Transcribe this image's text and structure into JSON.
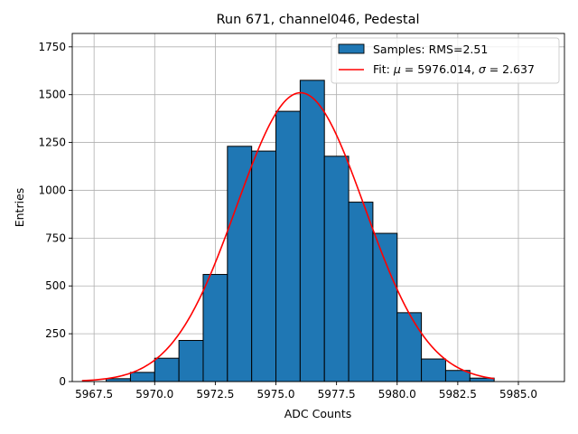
{
  "chart_data": {
    "type": "bar",
    "title": "Run 671, channel046, Pedestal",
    "xlabel": "ADC Counts",
    "ylabel": "Entries",
    "xlim": [
      5966.6,
      5986.9
    ],
    "ylim": [
      0,
      1820
    ],
    "grid": true,
    "bar_color": "#1f77b4",
    "fit_color": "#ff0000",
    "xticks": [
      5967.5,
      5970.0,
      5972.5,
      5975.0,
      5977.5,
      5980.0,
      5982.5,
      5985.0
    ],
    "xtick_labels": [
      "5967.5",
      "5970.0",
      "5972.5",
      "5975.0",
      "5977.5",
      "5980.0",
      "5982.5",
      "5985.0"
    ],
    "yticks": [
      0,
      250,
      500,
      750,
      1000,
      1250,
      1500,
      1750
    ],
    "ytick_labels": [
      "0",
      "250",
      "500",
      "750",
      "1000",
      "1250",
      "1500",
      "1750"
    ],
    "bins": [
      {
        "x0": 5967,
        "x1": 5968,
        "value": 0
      },
      {
        "x0": 5968,
        "x1": 5969,
        "value": 15
      },
      {
        "x0": 5969,
        "x1": 5970,
        "value": 48
      },
      {
        "x0": 5970,
        "x1": 5971,
        "value": 122
      },
      {
        "x0": 5971,
        "x1": 5972,
        "value": 215
      },
      {
        "x0": 5972,
        "x1": 5973,
        "value": 560
      },
      {
        "x0": 5973,
        "x1": 5974,
        "value": 1230
      },
      {
        "x0": 5974,
        "x1": 5975,
        "value": 1205
      },
      {
        "x0": 5975,
        "x1": 5976,
        "value": 1413
      },
      {
        "x0": 5976,
        "x1": 5977,
        "value": 1575
      },
      {
        "x0": 5977,
        "x1": 5978,
        "value": 1178
      },
      {
        "x0": 5978,
        "x1": 5979,
        "value": 938
      },
      {
        "x0": 5979,
        "x1": 5980,
        "value": 775
      },
      {
        "x0": 5980,
        "x1": 5981,
        "value": 360
      },
      {
        "x0": 5981,
        "x1": 5982,
        "value": 118
      },
      {
        "x0": 5982,
        "x1": 5983,
        "value": 58
      },
      {
        "x0": 5983,
        "x1": 5984,
        "value": 18
      },
      {
        "x0": 5984,
        "x1": 5985,
        "value": 0
      },
      {
        "x0": 5985,
        "x1": 5986,
        "value": 0
      }
    ],
    "fit": {
      "mu": 5976.014,
      "sigma": 2.637,
      "amplitude": 1510,
      "x_start": 5967.0,
      "x_end": 5984.0
    },
    "legend": {
      "position": "top-right",
      "samples_label": "Samples: RMS=2.51",
      "fit_label_prefix": "Fit: ",
      "fit_mu_symbol": "μ",
      "fit_mu_text": " = 5976.014, ",
      "fit_sigma_symbol": "σ",
      "fit_sigma_text": " = 2.637"
    }
  }
}
